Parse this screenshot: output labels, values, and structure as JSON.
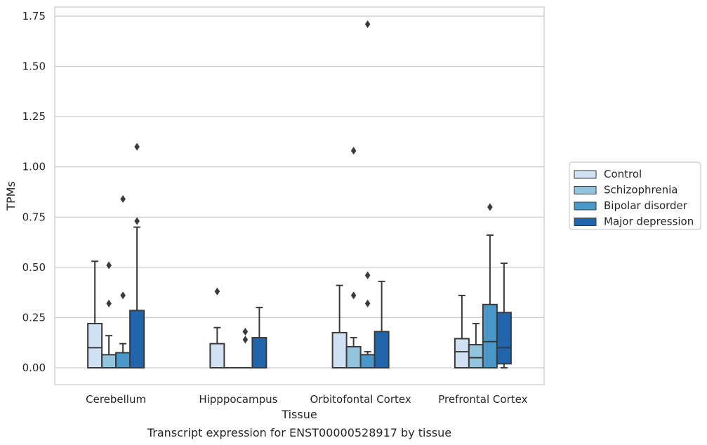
{
  "caption": "Transcript expression for ENST00000528917 by tissue",
  "chart_data": {
    "type": "box",
    "xlabel": "Tissue",
    "ylabel": "TPMs",
    "ylim": [
      -0.08,
      1.8
    ],
    "yticks": [
      0.0,
      0.25,
      0.5,
      0.75,
      1.0,
      1.25,
      1.5,
      1.75
    ],
    "ytick_labels": [
      "0.00",
      "0.25",
      "0.50",
      "0.75",
      "1.00",
      "1.25",
      "1.50",
      "1.75"
    ],
    "grid": "horizontal",
    "legend_position": "right",
    "categories": [
      "Cerebellum",
      "Hipppocampus",
      "Orbitofontal Cortex",
      "Prefrontal Cortex"
    ],
    "series": [
      {
        "name": "Control",
        "color": "#cfe1f2",
        "boxes": [
          {
            "whislo": 0.0,
            "q1": 0.0,
            "median": 0.1,
            "q3": 0.22,
            "whishi": 0.53,
            "fliers": []
          },
          {
            "whislo": 0.0,
            "q1": 0.0,
            "median": 0.0,
            "q3": 0.12,
            "whishi": 0.2,
            "fliers": [
              0.38
            ]
          },
          {
            "whislo": 0.0,
            "q1": 0.0,
            "median": 0.0,
            "q3": 0.175,
            "whishi": 0.41,
            "fliers": []
          },
          {
            "whislo": 0.0,
            "q1": 0.0,
            "median": 0.08,
            "q3": 0.145,
            "whishi": 0.36,
            "fliers": []
          }
        ]
      },
      {
        "name": "Schizophrenia",
        "color": "#93c4de",
        "boxes": [
          {
            "whislo": 0.0,
            "q1": 0.0,
            "median": 0.0,
            "q3": 0.065,
            "whishi": 0.16,
            "fliers": [
              0.32,
              0.51
            ]
          },
          {
            "whislo": 0.0,
            "q1": 0.0,
            "median": 0.0,
            "q3": 0.0,
            "whishi": 0.0,
            "fliers": []
          },
          {
            "whislo": 0.0,
            "q1": 0.0,
            "median": 0.0,
            "q3": 0.105,
            "whishi": 0.15,
            "fliers": [
              0.36,
              1.08
            ]
          },
          {
            "whislo": 0.0,
            "q1": 0.0,
            "median": 0.05,
            "q3": 0.115,
            "whishi": 0.22,
            "fliers": []
          }
        ]
      },
      {
        "name": "Bipolar disorder",
        "color": "#4a98c9",
        "boxes": [
          {
            "whislo": 0.0,
            "q1": 0.0,
            "median": 0.0,
            "q3": 0.075,
            "whishi": 0.12,
            "fliers": [
              0.36,
              0.84
            ]
          },
          {
            "whislo": 0.0,
            "q1": 0.0,
            "median": 0.0,
            "q3": 0.0,
            "whishi": 0.0,
            "fliers": [
              0.14,
              0.18
            ]
          },
          {
            "whislo": 0.0,
            "q1": 0.0,
            "median": 0.0,
            "q3": 0.065,
            "whishi": 0.08,
            "fliers": [
              0.32,
              0.46,
              1.71
            ]
          },
          {
            "whislo": 0.0,
            "q1": 0.0,
            "median": 0.13,
            "q3": 0.315,
            "whishi": 0.66,
            "fliers": [
              0.8
            ]
          }
        ]
      },
      {
        "name": "Major depression",
        "color": "#2166ac",
        "boxes": [
          {
            "whislo": 0.0,
            "q1": 0.0,
            "median": 0.0,
            "q3": 0.285,
            "whishi": 0.7,
            "fliers": [
              0.73,
              1.1
            ]
          },
          {
            "whislo": 0.0,
            "q1": 0.0,
            "median": 0.0,
            "q3": 0.15,
            "whishi": 0.3,
            "fliers": []
          },
          {
            "whislo": 0.0,
            "q1": 0.0,
            "median": 0.0,
            "q3": 0.18,
            "whishi": 0.43,
            "fliers": []
          },
          {
            "whislo": 0.0,
            "q1": 0.02,
            "median": 0.1,
            "q3": 0.275,
            "whishi": 0.52,
            "fliers": []
          }
        ]
      }
    ]
  }
}
